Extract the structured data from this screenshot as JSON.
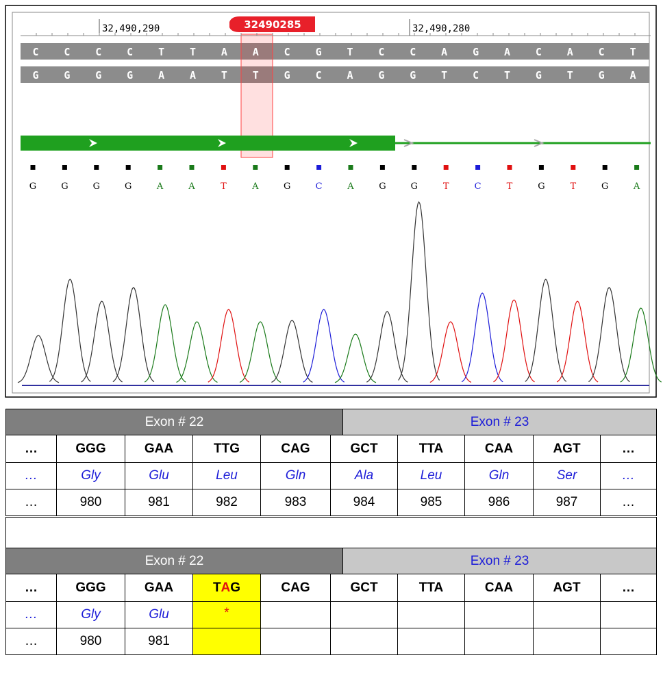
{
  "ruler": {
    "labels": [
      "32,490,290",
      "32,490,280"
    ],
    "marker": "32490285"
  },
  "strands": {
    "top": [
      "C",
      "C",
      "C",
      "C",
      "T",
      "T",
      "A",
      "A",
      "C",
      "G",
      "T",
      "C",
      "C",
      "A",
      "G",
      "A",
      "C",
      "A",
      "C",
      "T"
    ],
    "bottom": [
      "G",
      "G",
      "G",
      "G",
      "A",
      "A",
      "T",
      "T",
      "G",
      "C",
      "A",
      "G",
      "G",
      "T",
      "C",
      "T",
      "G",
      "T",
      "G",
      "A"
    ]
  },
  "base_calls": [
    "G",
    "G",
    "G",
    "G",
    "A",
    "A",
    "T",
    "A",
    "G",
    "C",
    "A",
    "G",
    "G",
    "T",
    "C",
    "T",
    "G",
    "T",
    "G",
    "A"
  ],
  "base_colors": {
    "A": "#1a7a1a",
    "C": "#1c1cd8",
    "G": "#000000",
    "T": "#e01010"
  },
  "tables": [
    {
      "exon_headers": [
        "Exon # 22",
        "Exon # 23"
      ],
      "codons": [
        "…",
        "GGG",
        "GAA",
        "TTG",
        "CAG",
        "GCT",
        "TTA",
        "CAA",
        "AGT",
        "…"
      ],
      "amino_acids": [
        "…",
        "Gly",
        "Glu",
        "Leu",
        "Gln",
        "Ala",
        "Leu",
        "Gln",
        "Ser",
        "…"
      ],
      "positions": [
        "…",
        980,
        981,
        982,
        983,
        984,
        985,
        986,
        987,
        "…"
      ]
    },
    {
      "exon_headers": [
        "Exon # 22",
        "Exon # 23"
      ],
      "codons": [
        "…",
        "GGG",
        "GAA",
        [
          "T",
          "A",
          "G"
        ],
        "CAG",
        "GCT",
        "TTA",
        "CAA",
        "AGT",
        "…"
      ],
      "amino_acids": [
        "…",
        "Gly",
        "Glu",
        "*",
        null,
        null,
        null,
        null,
        null,
        null
      ],
      "positions": [
        "…",
        980,
        981,
        null,
        null,
        null,
        null,
        null,
        null,
        null
      ]
    }
  ]
}
